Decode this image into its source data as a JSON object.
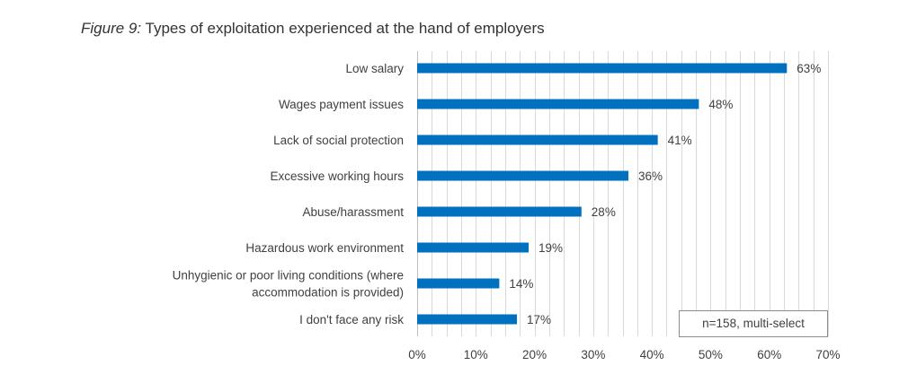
{
  "title": {
    "prefix": "Figure 9:",
    "text": " Types of exploitation experienced at the hand of employers"
  },
  "note": "n=158, multi-select",
  "colors": {
    "bar": "#0070c0"
  },
  "chart_data": {
    "type": "bar",
    "orientation": "horizontal",
    "categories": [
      "Low salary",
      "Wages payment issues",
      "Lack of social protection",
      "Excessive working hours",
      "Abuse/harassment",
      "Hazardous work environment",
      "Unhygienic or poor living conditions (where accommodation is provided)",
      "I don't face any risk"
    ],
    "category_lines": [
      [
        "Low salary"
      ],
      [
        "Wages payment issues"
      ],
      [
        "Lack of social protection"
      ],
      [
        "Excessive working hours"
      ],
      [
        "Abuse/harassment"
      ],
      [
        "Hazardous work environment"
      ],
      [
        "Unhygienic or poor living conditions (where",
        "accommodation is provided)"
      ],
      [
        "I don't face any risk"
      ]
    ],
    "values": [
      63,
      48,
      41,
      36,
      28,
      19,
      14,
      17
    ],
    "value_labels": [
      "63%",
      "48%",
      "41%",
      "36%",
      "28%",
      "19%",
      "14%",
      "17%"
    ],
    "xlim": [
      0,
      70
    ],
    "x_ticks": [
      0,
      10,
      20,
      30,
      40,
      50,
      60,
      70
    ],
    "x_tick_labels": [
      "0%",
      "10%",
      "20%",
      "30%",
      "40%",
      "50%",
      "60%",
      "70%"
    ],
    "minor_grid_step": 2.5,
    "grid": true
  }
}
